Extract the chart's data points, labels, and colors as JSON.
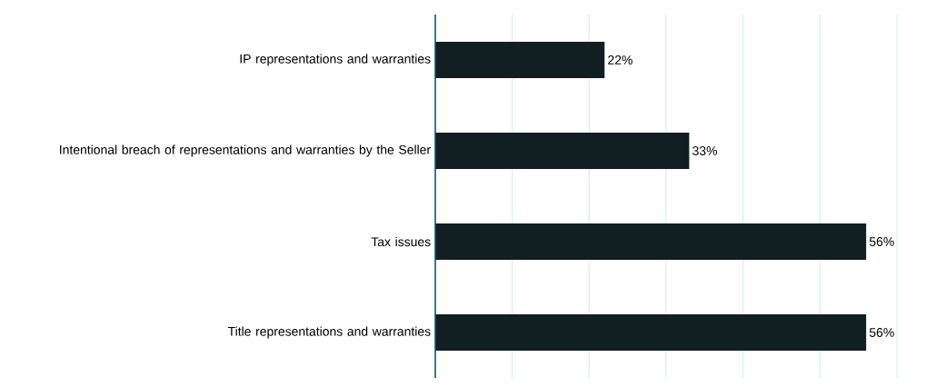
{
  "chart_data": {
    "type": "bar",
    "orientation": "horizontal",
    "categories": [
      "IP representations and warranties",
      "Intentional breach of representations and warranties by the Seller",
      "Tax issues",
      "Title representations and warranties"
    ],
    "values": [
      22,
      33,
      56,
      56
    ],
    "value_labels": [
      "22%",
      "33%",
      "56%",
      "56%"
    ],
    "color": "#111e22",
    "xlim": [
      0,
      60
    ],
    "xticks": [
      {
        "value": 0,
        "label": null
      },
      {
        "value": 10,
        "label": null
      },
      {
        "value": 20,
        "label": null
      },
      {
        "value": 30,
        "label": null
      },
      {
        "value": 40,
        "label": null
      },
      {
        "value": 50,
        "label": null
      },
      {
        "value": 60,
        "label": null
      }
    ],
    "grid": "x",
    "tick_labels": "y"
  }
}
